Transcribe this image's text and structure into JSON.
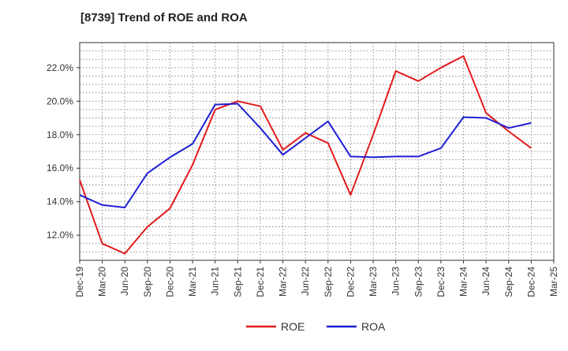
{
  "chart_data": {
    "type": "line",
    "title": "[8739]  Trend of ROE and ROA",
    "x": [
      "Dec-19",
      "Mar-20",
      "Jun-20",
      "Sep-20",
      "Dec-20",
      "Mar-21",
      "Jun-21",
      "Sep-21",
      "Dec-21",
      "Mar-22",
      "Jun-22",
      "Sep-22",
      "Dec-22",
      "Mar-23",
      "Jun-23",
      "Sep-23",
      "Dec-23",
      "Mar-24",
      "Jun-24",
      "Sep-24",
      "Dec-24",
      "Mar-25"
    ],
    "y_ticks": [
      "12.0%",
      "14.0%",
      "16.0%",
      "18.0%",
      "20.0%",
      "22.0%"
    ],
    "y_tick_values": [
      12,
      14,
      16,
      18,
      20,
      22
    ],
    "ylim": [
      10.5,
      23.5
    ],
    "y_unit": "%",
    "grid": true,
    "legend_position": "bottom-center",
    "series": [
      {
        "name": "ROE",
        "color": "#e31a1c",
        "values": [
          15.3,
          11.5,
          10.9,
          12.5,
          13.6,
          16.2,
          19.5,
          20.0,
          19.7,
          17.1,
          18.1,
          17.5,
          14.4,
          18.0,
          21.8,
          21.2,
          22.0,
          22.7,
          19.3,
          18.2,
          17.2,
          null
        ]
      },
      {
        "name": "ROA",
        "color": "#1f1fd6",
        "values": [
          14.4,
          13.8,
          13.65,
          15.7,
          16.65,
          17.45,
          19.8,
          19.85,
          18.4,
          16.8,
          17.8,
          18.8,
          16.7,
          16.65,
          16.7,
          16.7,
          17.2,
          19.05,
          19.0,
          18.4,
          18.7,
          null
        ]
      }
    ]
  }
}
